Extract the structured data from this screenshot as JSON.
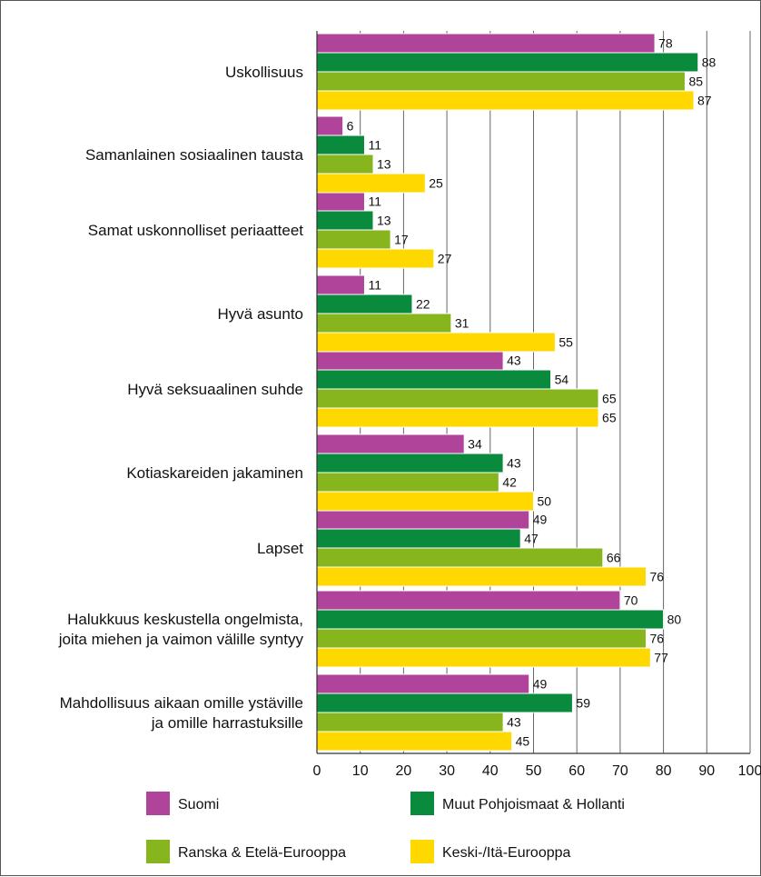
{
  "chart_data": {
    "type": "bar",
    "orientation": "horizontal",
    "categories": [
      [
        "Uskollisuus"
      ],
      [
        "Samanlainen sosiaalinen tausta"
      ],
      [
        "Samat uskonnolliset periaatteet"
      ],
      [
        "Hyvä asunto"
      ],
      [
        "Hyvä seksuaalinen suhde"
      ],
      [
        "Kotiaskareiden jakaminen"
      ],
      [
        "Lapset"
      ],
      [
        "Halukkuus keskustella ongelmista,",
        "joita miehen ja vaimon välille syntyy"
      ],
      [
        "Mahdollisuus aikaan omille ystäville",
        "ja omille harrastuksille"
      ]
    ],
    "series": [
      {
        "name": "Suomi",
        "color": "#b0449a",
        "values": [
          78,
          6,
          11,
          11,
          43,
          34,
          49,
          70,
          49
        ]
      },
      {
        "name": "Muut Pohjoismaat & Hollanti",
        "color": "#0a8a3c",
        "values": [
          88,
          11,
          13,
          22,
          54,
          43,
          47,
          80,
          59
        ]
      },
      {
        "name": "Ranska & Etelä-Eurooppa",
        "color": "#86b51e",
        "values": [
          85,
          13,
          17,
          31,
          65,
          42,
          66,
          76,
          43
        ]
      },
      {
        "name": "Keski-/Itä-Eurooppa",
        "color": "#ffd800",
        "values": [
          87,
          25,
          27,
          55,
          65,
          50,
          76,
          77,
          45
        ]
      }
    ],
    "xlim": [
      0,
      100
    ],
    "xticks": [
      0,
      10,
      20,
      30,
      40,
      50,
      60,
      70,
      80,
      90,
      100
    ],
    "grid": true,
    "legend": "bottom"
  }
}
